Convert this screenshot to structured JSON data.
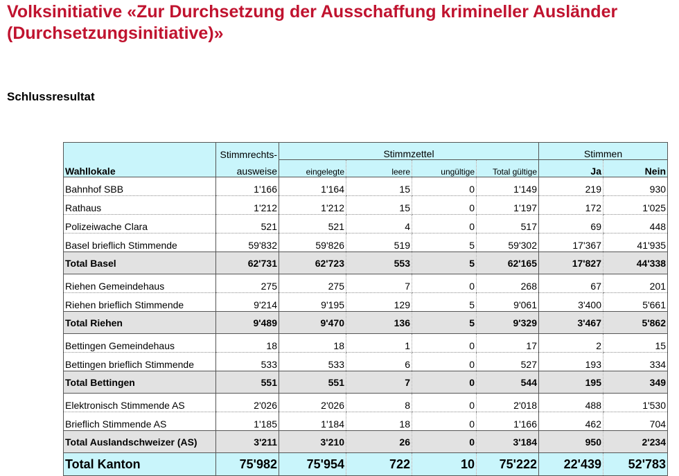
{
  "title": "Volksinitiative «Zur Durchsetzung der Ausschaffung krimineller Ausländer (Durchsetzungsinitiative)»",
  "subtitle": "Schlussresultat",
  "headers": {
    "stimmrechts_line1": "Stimmrechts-",
    "stimmrechts_line2": "ausweise",
    "stimmzettel": "Stimmzettel",
    "stimmen": "Stimmen",
    "wahllokale": "Wahllokale",
    "eingelegte": "eingelegte",
    "leere": "leere",
    "ungueltige": "ungültige",
    "total_gueltige": "Total gültige",
    "ja": "Ja",
    "nein": "Nein"
  },
  "rows": [
    {
      "type": "data",
      "name": "Bahnhof SBB",
      "ausweise": "1'166",
      "eingelegte": "1'164",
      "leere": "15",
      "ungueltige": "0",
      "total_gueltige": "1'149",
      "ja": "219",
      "nein": "930"
    },
    {
      "type": "data",
      "name": "Rathaus",
      "ausweise": "1'212",
      "eingelegte": "1'212",
      "leere": "15",
      "ungueltige": "0",
      "total_gueltige": "1'197",
      "ja": "172",
      "nein": "1'025"
    },
    {
      "type": "data",
      "name": "Polizeiwache Clara",
      "ausweise": "521",
      "eingelegte": "521",
      "leere": "4",
      "ungueltige": "0",
      "total_gueltige": "517",
      "ja": "69",
      "nein": "448"
    },
    {
      "type": "data",
      "name": "Basel brieflich Stimmende",
      "ausweise": "59'832",
      "eingelegte": "59'826",
      "leere": "519",
      "ungueltige": "5",
      "total_gueltige": "59'302",
      "ja": "17'367",
      "nein": "41'935"
    },
    {
      "type": "total",
      "name": "Total Basel",
      "ausweise": "62'731",
      "eingelegte": "62'723",
      "leere": "553",
      "ungueltige": "5",
      "total_gueltige": "62'165",
      "ja": "17'827",
      "nein": "44'338"
    },
    {
      "type": "data",
      "name": "Riehen Gemeindehaus",
      "ausweise": "275",
      "eingelegte": "275",
      "leere": "7",
      "ungueltige": "0",
      "total_gueltige": "268",
      "ja": "67",
      "nein": "201"
    },
    {
      "type": "data",
      "name": "Riehen brieflich Stimmende",
      "ausweise": "9'214",
      "eingelegte": "9'195",
      "leere": "129",
      "ungueltige": "5",
      "total_gueltige": "9'061",
      "ja": "3'400",
      "nein": "5'661"
    },
    {
      "type": "total",
      "name": "Total Riehen",
      "ausweise": "9'489",
      "eingelegte": "9'470",
      "leere": "136",
      "ungueltige": "5",
      "total_gueltige": "9'329",
      "ja": "3'467",
      "nein": "5'862"
    },
    {
      "type": "data",
      "name": "Bettingen Gemeindehaus",
      "ausweise": "18",
      "eingelegte": "18",
      "leere": "1",
      "ungueltige": "0",
      "total_gueltige": "17",
      "ja": "2",
      "nein": "15"
    },
    {
      "type": "data",
      "name": "Bettingen brieflich Stimmende",
      "ausweise": "533",
      "eingelegte": "533",
      "leere": "6",
      "ungueltige": "0",
      "total_gueltige": "527",
      "ja": "193",
      "nein": "334"
    },
    {
      "type": "total",
      "name": "Total Bettingen",
      "ausweise": "551",
      "eingelegte": "551",
      "leere": "7",
      "ungueltige": "0",
      "total_gueltige": "544",
      "ja": "195",
      "nein": "349"
    },
    {
      "type": "data",
      "name": "Elektronisch Stimmende AS",
      "ausweise": "2'026",
      "eingelegte": "2'026",
      "leere": "8",
      "ungueltige": "0",
      "total_gueltige": "2'018",
      "ja": "488",
      "nein": "1'530"
    },
    {
      "type": "data",
      "name": "Brieflich Stimmende AS",
      "ausweise": "1'185",
      "eingelegte": "1'184",
      "leere": "18",
      "ungueltige": "0",
      "total_gueltige": "1'166",
      "ja": "462",
      "nein": "704"
    },
    {
      "type": "total",
      "name": "Total Auslandschweizer (AS)",
      "ausweise": "3'211",
      "eingelegte": "3'210",
      "leere": "26",
      "ungueltige": "0",
      "total_gueltige": "3'184",
      "ja": "950",
      "nein": "2'234"
    },
    {
      "type": "grand",
      "name": "Total Kanton",
      "ausweise": "75'982",
      "eingelegte": "75'954",
      "leere": "722",
      "ungueltige": "10",
      "total_gueltige": "75'222",
      "ja": "22'439",
      "nein": "52'783"
    }
  ]
}
